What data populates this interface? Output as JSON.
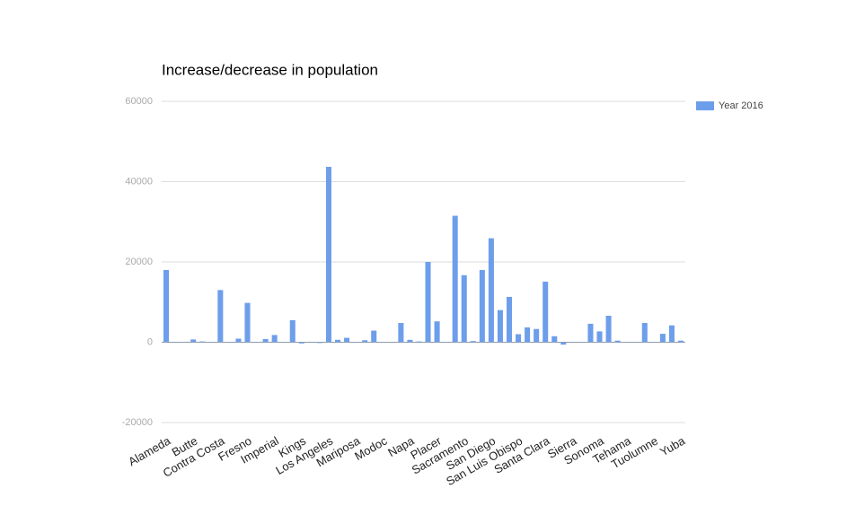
{
  "chart_data": {
    "type": "bar",
    "title": "Increase/decrease in population",
    "categories": [
      "Alameda",
      null,
      null,
      "Butte",
      null,
      null,
      "Contra Costa",
      null,
      null,
      "Fresno",
      null,
      null,
      "Imperial",
      null,
      null,
      "Kings",
      null,
      null,
      "Los Angeles",
      null,
      null,
      "Mariposa",
      null,
      null,
      "Modoc",
      null,
      null,
      "Napa",
      null,
      null,
      "Placer",
      null,
      null,
      "Sacramento",
      null,
      null,
      "San Diego",
      null,
      null,
      "San Luis Obispo",
      null,
      null,
      "Santa Clara",
      null,
      null,
      "Sierra",
      null,
      null,
      "Sonoma",
      null,
      null,
      "Tehama",
      null,
      null,
      "Tuolumne",
      null,
      null,
      "Yuba"
    ],
    "series": [
      {
        "name": "Year 2016",
        "color": "#6d9eeb",
        "values": [
          18000,
          100,
          100,
          700,
          200,
          0,
          13000,
          0,
          900,
          9800,
          0,
          800,
          1800,
          0,
          5500,
          -300,
          0,
          -200,
          43700,
          600,
          1100,
          0,
          500,
          2900,
          0,
          0,
          4800,
          600,
          200,
          20000,
          5200,
          0,
          31500,
          16700,
          300,
          18000,
          25900,
          8000,
          11300,
          2000,
          3700,
          3300,
          15100,
          1500,
          -600,
          0,
          100,
          4600,
          2700,
          6600,
          400,
          0,
          0,
          4800,
          0,
          2100,
          4200,
          400
        ]
      }
    ],
    "ylim": [
      -20000,
      60000
    ],
    "yticks": [
      -20000,
      0,
      20000,
      40000,
      60000
    ],
    "grid": true,
    "legend": "right"
  }
}
